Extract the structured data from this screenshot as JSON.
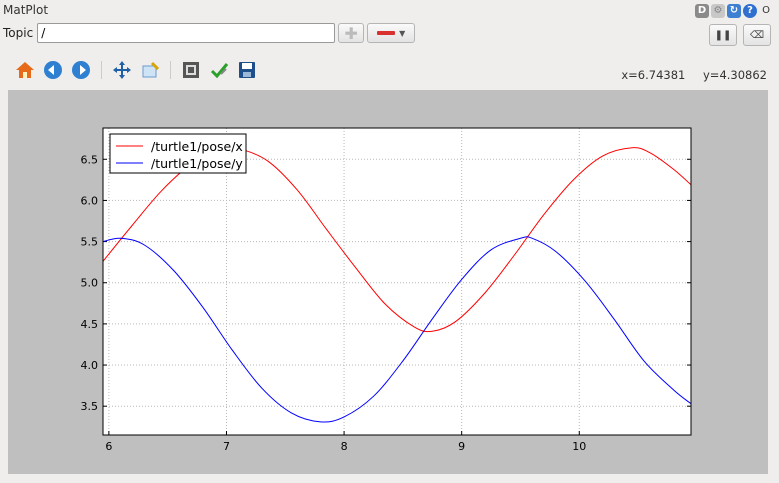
{
  "window": {
    "title": "MatPlot"
  },
  "title_icons": [
    "D",
    "gear",
    "refresh",
    "?",
    "O"
  ],
  "topic": {
    "label": "Topic",
    "value": "/",
    "add_icon": "plus-icon",
    "remove_icon": "minus-icon"
  },
  "toolbar": {
    "icons": [
      "home-icon",
      "back-icon",
      "forward-icon",
      "pan-icon",
      "zoom-icon",
      "configure-icon",
      "edit-icon",
      "save-icon"
    ]
  },
  "coords": {
    "x": "x=6.74381",
    "y": "y=4.30862"
  },
  "chart_data": {
    "type": "line",
    "xlim": [
      5.95,
      10.95
    ],
    "ylim": [
      3.15,
      6.88
    ],
    "xticks": [
      6,
      7,
      8,
      9,
      10
    ],
    "yticks": [
      3.5,
      4.0,
      4.5,
      5.0,
      5.5,
      6.0,
      6.5
    ],
    "xtick_labels": [
      "6",
      "7",
      "8",
      "9",
      "10"
    ],
    "ytick_labels": [
      "3.5",
      "4.0",
      "4.5",
      "5.0",
      "5.5",
      "6.0",
      "6.5"
    ],
    "grid": true,
    "legend": "top-left",
    "series": [
      {
        "name": "/turtle1/pose/x",
        "color": "#ff0000",
        "x": [
          5.95,
          6.2,
          6.45,
          6.7,
          6.95,
          7.1,
          7.35,
          7.6,
          7.85,
          8.1,
          8.35,
          8.6,
          8.75,
          8.95,
          9.2,
          9.45,
          9.7,
          9.95,
          10.2,
          10.45,
          10.6,
          10.8,
          10.95
        ],
        "y": [
          5.26,
          5.7,
          6.12,
          6.44,
          6.62,
          6.63,
          6.48,
          6.13,
          5.65,
          5.18,
          4.74,
          4.46,
          4.41,
          4.53,
          4.88,
          5.34,
          5.83,
          6.25,
          6.54,
          6.64,
          6.58,
          6.38,
          6.19
        ]
      },
      {
        "name": "/turtle1/pose/y",
        "color": "#0000ff",
        "x": [
          5.95,
          6.1,
          6.3,
          6.55,
          6.8,
          7.05,
          7.3,
          7.55,
          7.8,
          8.0,
          8.25,
          8.5,
          8.75,
          9.0,
          9.25,
          9.5,
          9.6,
          9.8,
          10.05,
          10.3,
          10.55,
          10.8,
          10.95
        ],
        "y": [
          5.5,
          5.54,
          5.46,
          5.15,
          4.7,
          4.18,
          3.72,
          3.42,
          3.31,
          3.37,
          3.62,
          4.05,
          4.56,
          5.04,
          5.4,
          5.54,
          5.54,
          5.38,
          5.02,
          4.55,
          4.05,
          3.7,
          3.53
        ]
      }
    ]
  }
}
